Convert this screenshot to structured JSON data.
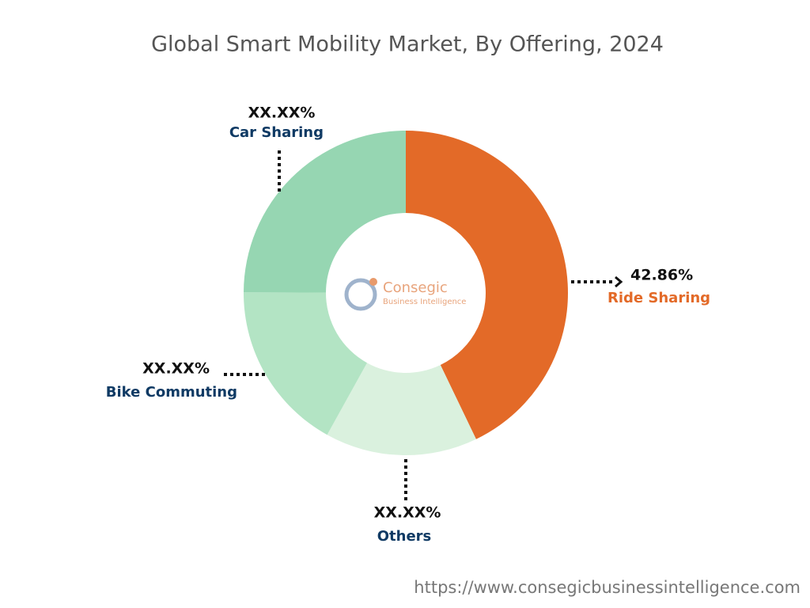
{
  "chart_data": {
    "type": "donut",
    "title": "Global Smart Mobility Market, By Offering, 2024",
    "categories": [
      "Ride Sharing",
      "Others",
      "Bike Commuting",
      "Car Sharing"
    ],
    "values": [
      42.86,
      15.2,
      17.0,
      24.94
    ],
    "value_labels": [
      "42.86%",
      "XX.XX%",
      "XX.XX%",
      "XX.XX%"
    ],
    "colors": [
      "#e36a28",
      "#daf1de",
      "#b3e4c4",
      "#96d6b2"
    ]
  },
  "logo": {
    "name": "Consegic",
    "tagline": "Business Intelligence"
  },
  "footer": {
    "url": "https://www.consegicbusinessintelligence.com"
  }
}
